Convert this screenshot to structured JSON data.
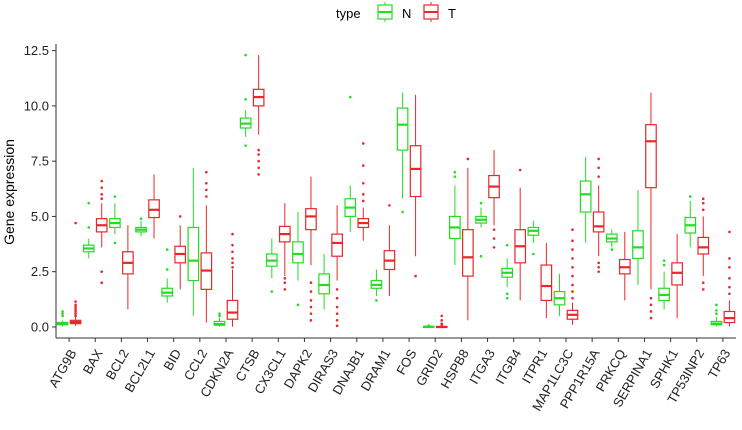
{
  "chart_data": {
    "type": "box",
    "title": "",
    "xlabel": "",
    "ylabel": "Gene expression",
    "ylim": [
      -0.5,
      12.8
    ],
    "yticks": [
      "0.0",
      "2.5",
      "5.0",
      "7.5",
      "10.0",
      "12.5"
    ],
    "grid": false,
    "legend": {
      "title": "type",
      "placement": "top-center"
    },
    "colors": {
      "N": "#22dd22",
      "T": "#e8262b"
    },
    "categories": [
      "ATG9B",
      "BAX",
      "BCL2",
      "BCL2L1",
      "BID",
      "CCL2",
      "CDKN2A",
      "CTSB",
      "CX3CL1",
      "DAPK2",
      "DIRAS3",
      "DNAJB1",
      "DRAM1",
      "FOS",
      "GRID2",
      "HSPB8",
      "ITGA3",
      "ITGB4",
      "ITPR1",
      "MAP1LC3C",
      "PPP1R15A",
      "PRKCQ",
      "SERPINA1",
      "SPHK1",
      "TP53INP2",
      "TP63"
    ],
    "series": [
      {
        "name": "N",
        "boxes": [
          {
            "whislo": 0.02,
            "q1": 0.1,
            "med": 0.15,
            "q3": 0.2,
            "whishi": 0.3,
            "outliers": [
              0.5,
              0.6,
              0.7
            ]
          },
          {
            "whislo": 3.1,
            "q1": 3.4,
            "med": 3.55,
            "q3": 3.7,
            "whishi": 4.0,
            "outliers": [
              4.5,
              5.6
            ]
          },
          {
            "whislo": 4.2,
            "q1": 4.5,
            "med": 4.7,
            "q3": 4.9,
            "whishi": 5.6,
            "outliers": [
              3.8,
              5.9
            ]
          },
          {
            "whislo": 4.1,
            "q1": 4.3,
            "med": 4.4,
            "q3": 4.5,
            "whishi": 4.8,
            "outliers": [
              4.9
            ]
          },
          {
            "whislo": 1.1,
            "q1": 1.4,
            "med": 1.55,
            "q3": 1.75,
            "whishi": 2.2,
            "outliers": [
              2.6,
              3.5
            ]
          },
          {
            "whislo": 0.5,
            "q1": 2.1,
            "med": 3.0,
            "q3": 4.5,
            "whishi": 7.2,
            "outliers": []
          },
          {
            "whislo": 0.02,
            "q1": 0.08,
            "med": 0.13,
            "q3": 0.25,
            "whishi": 0.4,
            "outliers": [
              0.5,
              0.6
            ]
          },
          {
            "whislo": 8.6,
            "q1": 9.0,
            "med": 9.2,
            "q3": 9.45,
            "whishi": 9.8,
            "outliers": [
              8.2,
              10.3,
              12.3
            ]
          },
          {
            "whislo": 2.2,
            "q1": 2.75,
            "med": 3.0,
            "q3": 3.3,
            "whishi": 4.0,
            "outliers": [
              1.6
            ]
          },
          {
            "whislo": 2.1,
            "q1": 2.9,
            "med": 3.3,
            "q3": 3.85,
            "whishi": 5.2,
            "outliers": [
              1.0
            ]
          },
          {
            "whislo": 0.8,
            "q1": 1.5,
            "med": 1.9,
            "q3": 2.4,
            "whishi": 3.3,
            "outliers": []
          },
          {
            "whislo": 4.3,
            "q1": 5.0,
            "med": 5.4,
            "q3": 5.8,
            "whishi": 6.4,
            "outliers": [
              10.4
            ]
          },
          {
            "whislo": 1.4,
            "q1": 1.75,
            "med": 1.9,
            "q3": 2.1,
            "whishi": 2.6,
            "outliers": [
              1.2
            ]
          },
          {
            "whislo": 5.8,
            "q1": 8.0,
            "med": 9.15,
            "q3": 9.9,
            "whishi": 10.6,
            "outliers": [
              5.2
            ]
          },
          {
            "whislo": -0.02,
            "q1": 0.0,
            "med": 0.01,
            "q3": 0.02,
            "whishi": 0.04,
            "outliers": [
              0.06
            ]
          },
          {
            "whislo": 2.8,
            "q1": 4.0,
            "med": 4.5,
            "q3": 5.0,
            "whishi": 6.4,
            "outliers": [
              6.8,
              7.0
            ]
          },
          {
            "whislo": 4.5,
            "q1": 4.7,
            "med": 4.85,
            "q3": 5.0,
            "whishi": 5.4,
            "outliers": [
              3.2,
              5.6
            ]
          },
          {
            "whislo": 1.8,
            "q1": 2.25,
            "med": 2.45,
            "q3": 2.65,
            "whishi": 3.1,
            "outliers": [
              1.3,
              1.5,
              3.7
            ]
          },
          {
            "whislo": 3.8,
            "q1": 4.15,
            "med": 4.35,
            "q3": 4.5,
            "whishi": 4.8,
            "outliers": [
              3.3
            ]
          },
          {
            "whislo": 0.5,
            "q1": 1.0,
            "med": 1.3,
            "q3": 1.6,
            "whishi": 2.4,
            "outliers": []
          },
          {
            "whislo": 3.8,
            "q1": 5.2,
            "med": 6.0,
            "q3": 6.6,
            "whishi": 7.7,
            "outliers": []
          },
          {
            "whislo": 3.6,
            "q1": 3.85,
            "med": 4.0,
            "q3": 4.2,
            "whishi": 4.4,
            "outliers": [
              3.5
            ]
          },
          {
            "whislo": 1.9,
            "q1": 3.1,
            "med": 3.6,
            "q3": 4.35,
            "whishi": 6.2,
            "outliers": []
          },
          {
            "whislo": 0.8,
            "q1": 1.2,
            "med": 1.45,
            "q3": 1.75,
            "whishi": 2.5,
            "outliers": [
              2.8,
              3.0
            ]
          },
          {
            "whislo": 3.6,
            "q1": 4.25,
            "med": 4.6,
            "q3": 4.95,
            "whishi": 5.7,
            "outliers": [
              5.9
            ]
          },
          {
            "whislo": 0.02,
            "q1": 0.1,
            "med": 0.15,
            "q3": 0.25,
            "whishi": 0.45,
            "outliers": [
              0.6,
              0.75,
              1.0
            ]
          }
        ]
      },
      {
        "name": "T",
        "boxes": [
          {
            "whislo": 0.05,
            "q1": 0.15,
            "med": 0.22,
            "q3": 0.3,
            "whishi": 0.45,
            "outliers": [
              0.5,
              0.6,
              0.7,
              0.8,
              0.9,
              1.0,
              1.15,
              4.7
            ]
          },
          {
            "whislo": 3.6,
            "q1": 4.3,
            "med": 4.6,
            "q3": 4.9,
            "whishi": 5.6,
            "outliers": [
              2.0,
              2.5,
              5.8,
              6.0,
              6.3,
              6.6
            ]
          },
          {
            "whislo": 0.8,
            "q1": 2.4,
            "med": 2.9,
            "q3": 3.4,
            "whishi": 4.6,
            "outliers": []
          },
          {
            "whislo": 4.0,
            "q1": 4.95,
            "med": 5.3,
            "q3": 5.75,
            "whishi": 6.9,
            "outliers": []
          },
          {
            "whislo": 1.7,
            "q1": 2.9,
            "med": 3.3,
            "q3": 3.65,
            "whishi": 4.6,
            "outliers": [
              5.0
            ]
          },
          {
            "whislo": 0.2,
            "q1": 1.7,
            "med": 2.55,
            "q3": 3.35,
            "whishi": 5.5,
            "outliers": [
              5.9,
              6.2,
              6.5,
              7.0
            ]
          },
          {
            "whislo": 0.01,
            "q1": 0.35,
            "med": 0.65,
            "q3": 1.2,
            "whishi": 2.6,
            "outliers": [
              2.7,
              2.9,
              3.1,
              3.4,
              3.7,
              4.2
            ]
          },
          {
            "whislo": 8.7,
            "q1": 10.0,
            "med": 10.4,
            "q3": 10.75,
            "whishi": 12.3,
            "outliers": [
              8.0,
              7.8,
              7.5,
              7.2,
              6.9
            ]
          },
          {
            "whislo": 2.3,
            "q1": 3.85,
            "med": 4.2,
            "q3": 4.55,
            "whishi": 5.6,
            "outliers": [
              1.7,
              2.0,
              2.2
            ]
          },
          {
            "whislo": 2.8,
            "q1": 4.4,
            "med": 5.0,
            "q3": 5.35,
            "whishi": 6.8,
            "outliers": [
              0.3,
              0.6,
              0.9,
              1.2,
              1.6,
              2.0
            ]
          },
          {
            "whislo": 2.1,
            "q1": 3.2,
            "med": 3.8,
            "q3": 4.2,
            "whishi": 5.5,
            "outliers": [
              0.05,
              0.3,
              0.6,
              0.9,
              1.3,
              1.7
            ]
          },
          {
            "whislo": 3.9,
            "q1": 4.5,
            "med": 4.7,
            "q3": 4.9,
            "whishi": 5.4,
            "outliers": [
              5.7,
              6.0,
              6.5,
              7.3,
              8.3
            ]
          },
          {
            "whislo": 1.4,
            "q1": 2.6,
            "med": 3.0,
            "q3": 3.45,
            "whishi": 4.6,
            "outliers": [
              5.5
            ]
          },
          {
            "whislo": 3.2,
            "q1": 5.9,
            "med": 7.15,
            "q3": 8.2,
            "whishi": 10.5,
            "outliers": [
              2.3
            ]
          },
          {
            "whislo": -0.05,
            "q1": -0.01,
            "med": 0.0,
            "q3": 0.02,
            "whishi": 0.06,
            "outliers": [
              0.1,
              0.15,
              0.3,
              0.5
            ]
          },
          {
            "whislo": 0.3,
            "q1": 2.3,
            "med": 3.15,
            "q3": 4.4,
            "whishi": 7.2,
            "outliers": [
              7.6
            ]
          },
          {
            "whislo": 4.6,
            "q1": 5.85,
            "med": 6.35,
            "q3": 6.85,
            "whishi": 8.0,
            "outliers": [
              3.6,
              4.0,
              4.4
            ]
          },
          {
            "whislo": 1.2,
            "q1": 2.9,
            "med": 3.65,
            "q3": 4.4,
            "whishi": 6.3,
            "outliers": [
              7.1
            ]
          },
          {
            "whislo": 0.4,
            "q1": 1.2,
            "med": 1.85,
            "q3": 2.8,
            "whishi": 3.8,
            "outliers": []
          },
          {
            "whislo": 0.1,
            "q1": 0.35,
            "med": 0.55,
            "q3": 0.75,
            "whishi": 1.1,
            "outliers": [
              1.3,
              1.6,
              1.9,
              2.3,
              2.7,
              3.1,
              3.5,
              3.9,
              4.4
            ]
          },
          {
            "whislo": 3.2,
            "q1": 4.3,
            "med": 4.55,
            "q3": 5.2,
            "whishi": 6.4,
            "outliers": [
              2.5,
              2.7,
              2.9,
              6.8,
              7.2,
              7.6
            ]
          },
          {
            "whislo": 1.2,
            "q1": 2.4,
            "med": 2.7,
            "q3": 3.05,
            "whishi": 4.3,
            "outliers": []
          },
          {
            "whislo": 1.7,
            "q1": 6.3,
            "med": 8.4,
            "q3": 9.15,
            "whishi": 10.6,
            "outliers": [
              0.4,
              0.7,
              1.0,
              1.3
            ]
          },
          {
            "whislo": 0.4,
            "q1": 1.9,
            "med": 2.45,
            "q3": 2.9,
            "whishi": 4.2,
            "outliers": []
          },
          {
            "whislo": 2.3,
            "q1": 3.3,
            "med": 3.6,
            "q3": 4.05,
            "whishi": 5.0,
            "outliers": [
              1.7,
              2.0,
              5.3,
              5.6,
              5.8
            ]
          },
          {
            "whislo": 0.02,
            "q1": 0.2,
            "med": 0.4,
            "q3": 0.7,
            "whishi": 1.2,
            "outliers": [
              1.5,
              1.8,
              2.2,
              2.7,
              3.1,
              4.3
            ]
          }
        ]
      }
    ]
  }
}
